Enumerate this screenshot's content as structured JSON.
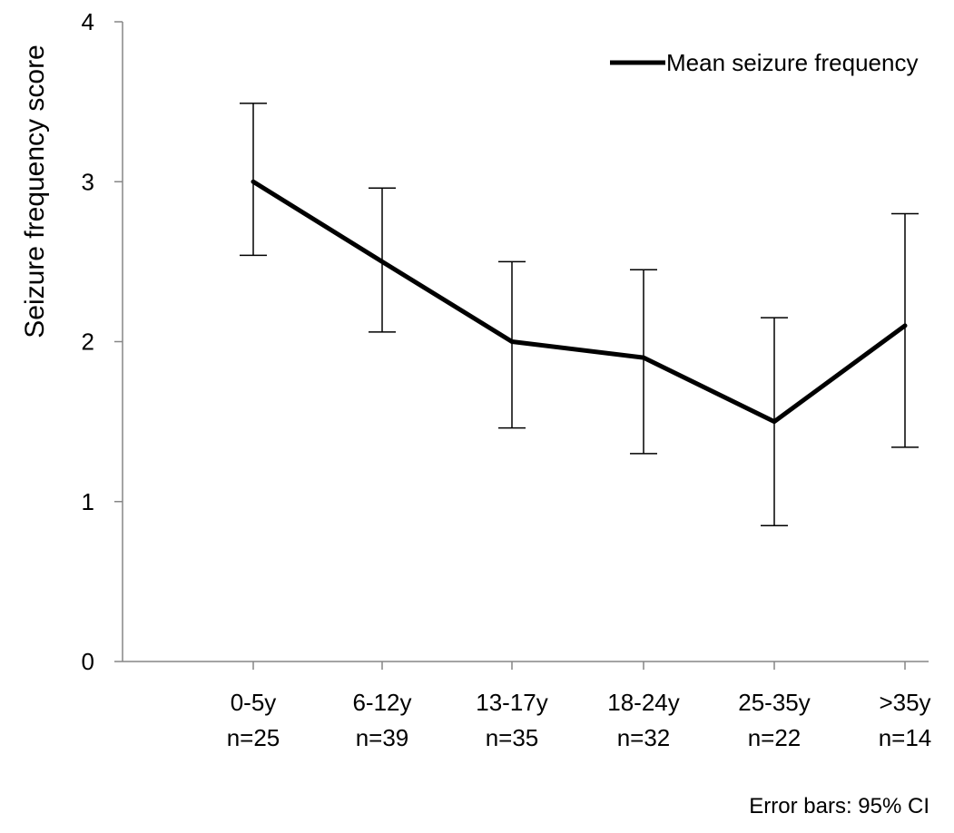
{
  "chart_data": {
    "type": "line",
    "categories": [
      "0-5y",
      "6-12y",
      "13-17y",
      "18-24y",
      "25-35y",
      ">35y"
    ],
    "category_counts": [
      "n=25",
      "n=39",
      "n=35",
      "n=32",
      "n=22",
      "n=14"
    ],
    "series": [
      {
        "name": "Mean seizure frequency",
        "values": [
          3.0,
          2.5,
          2.0,
          1.9,
          1.5,
          2.1
        ],
        "error_lower": [
          2.54,
          2.06,
          1.46,
          1.3,
          0.85,
          1.34
        ],
        "error_upper": [
          3.49,
          2.96,
          2.5,
          2.45,
          2.15,
          2.8
        ],
        "color": "#000000"
      }
    ],
    "title": "",
    "xlabel": "",
    "ylabel": "Seizure frequency score",
    "ylim": [
      0,
      4
    ],
    "yticks": [
      "0",
      "1",
      "2",
      "3",
      "4"
    ],
    "grid": false,
    "legend_position": "top-right",
    "note": "Error bars: 95% CI"
  }
}
